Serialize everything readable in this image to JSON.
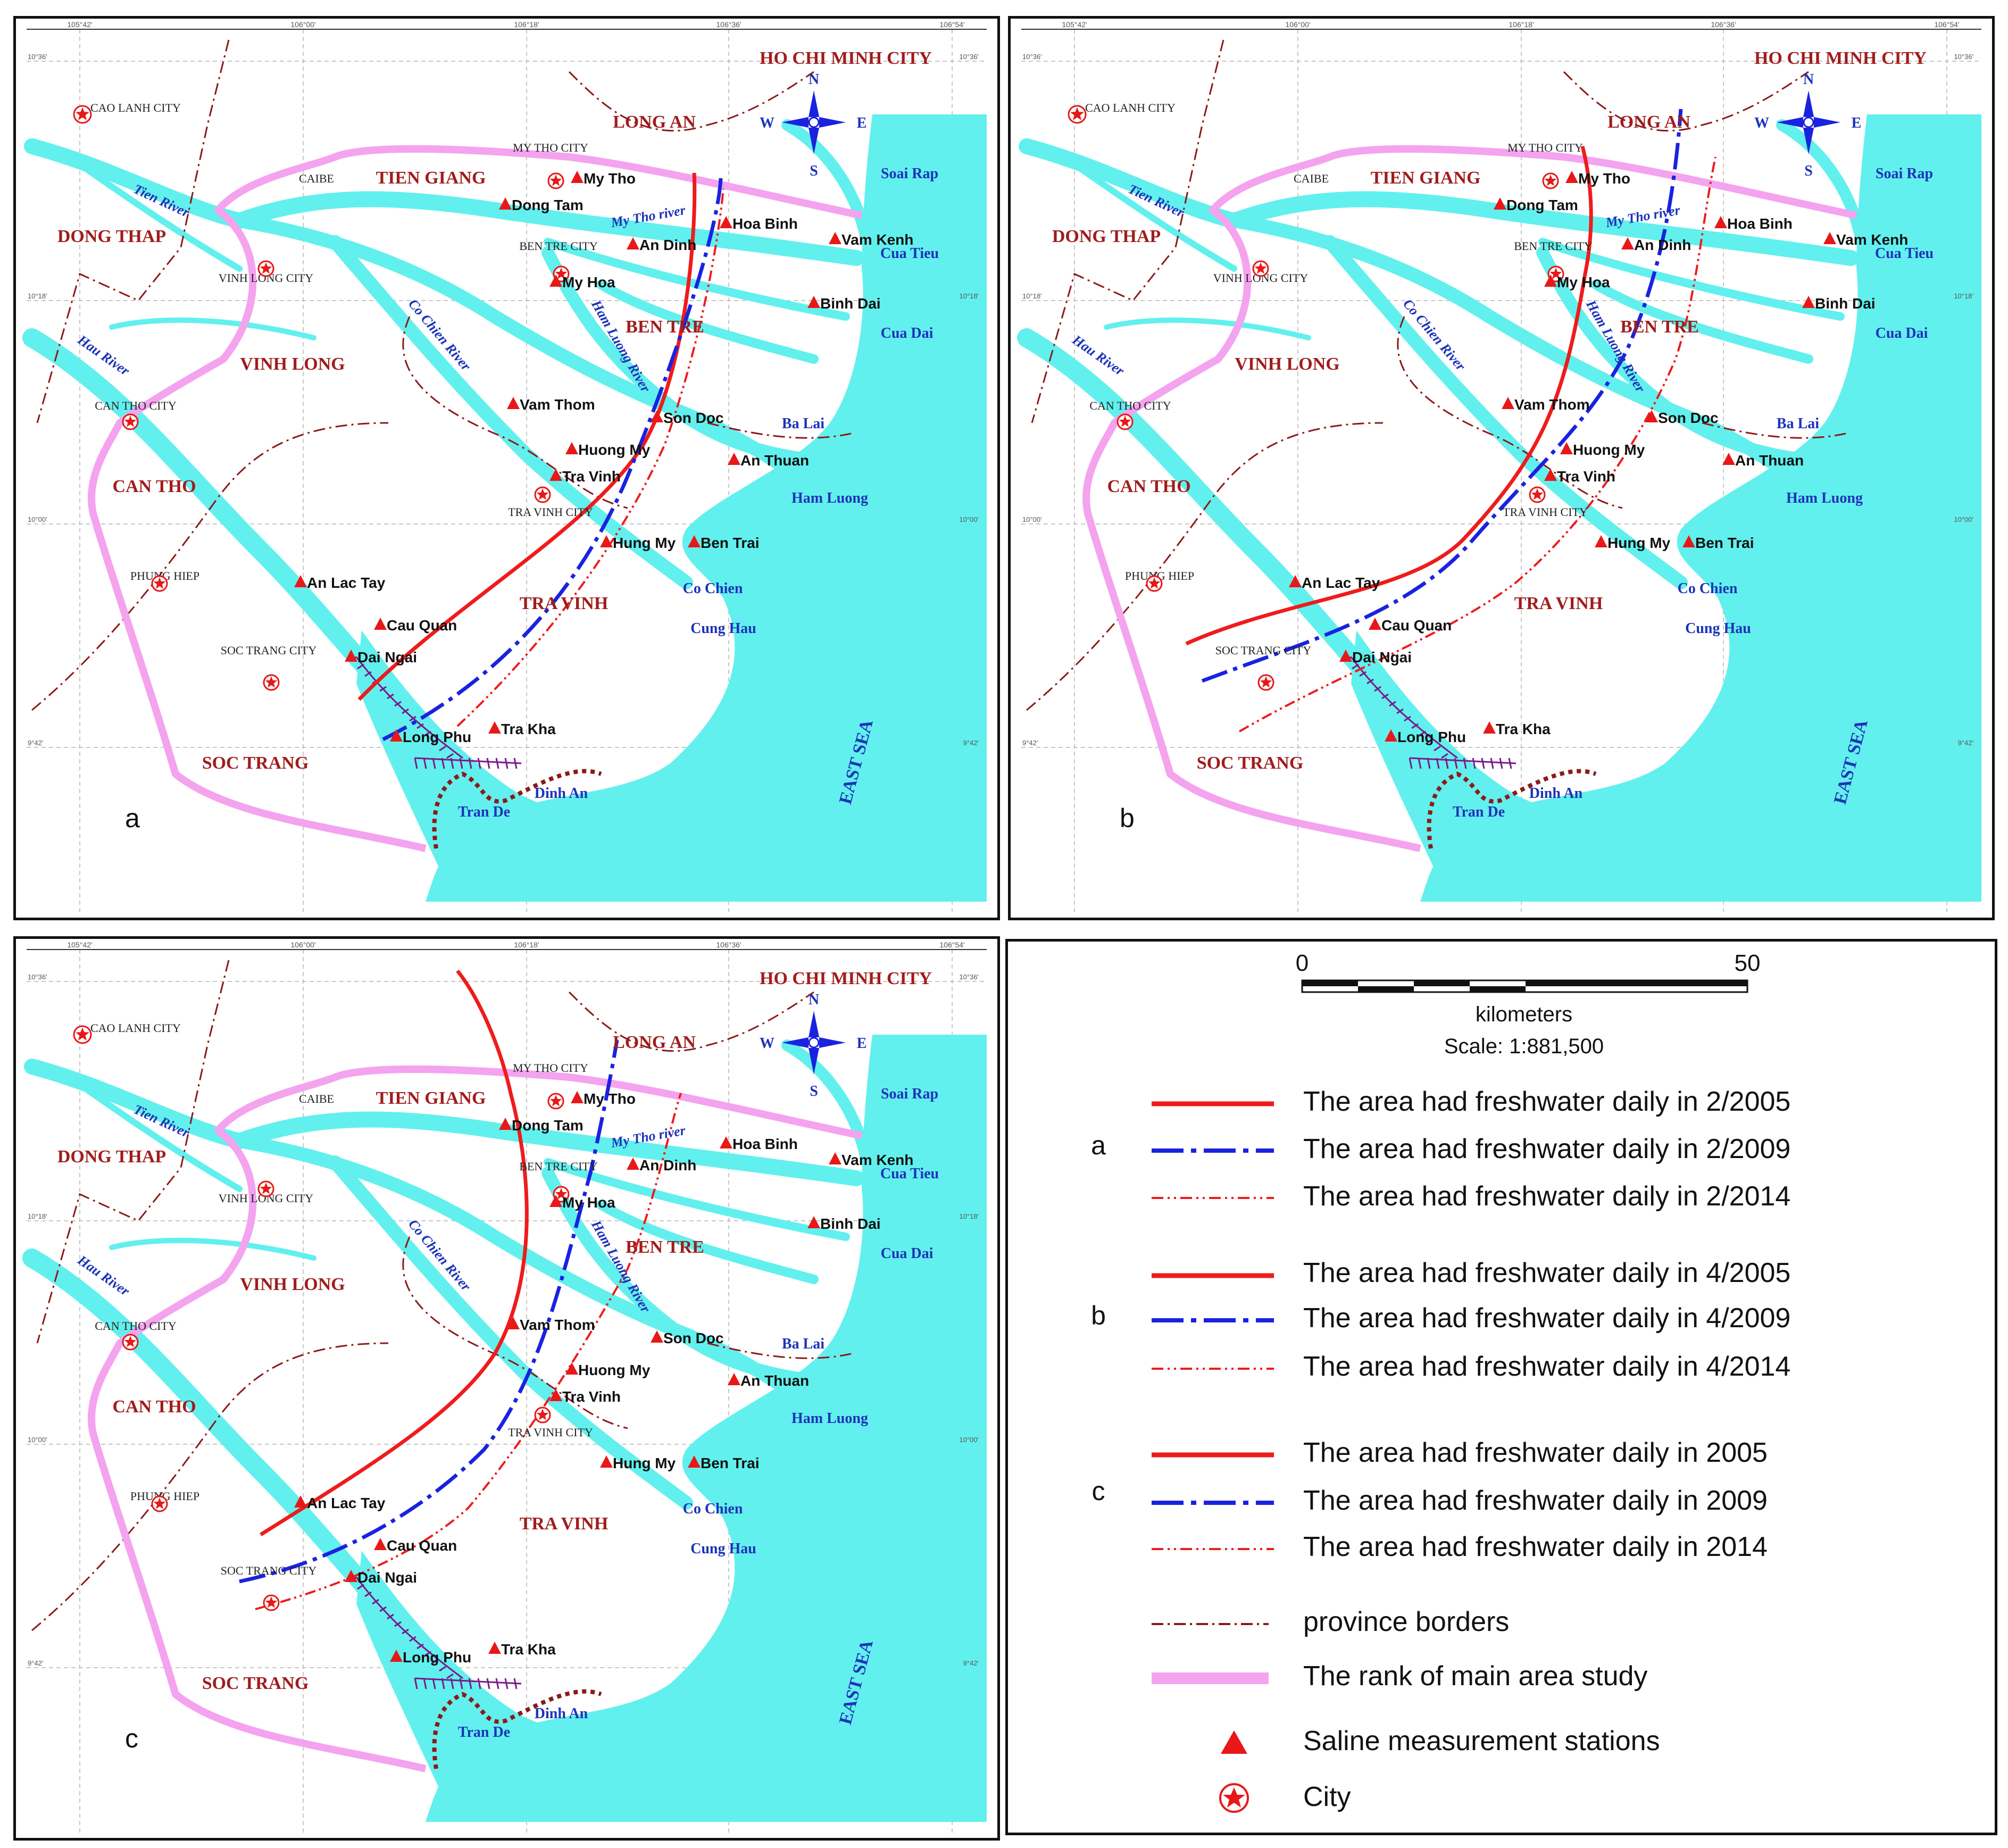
{
  "panels": [
    {
      "id": "a",
      "label": "a"
    },
    {
      "id": "b",
      "label": "b"
    },
    {
      "id": "c",
      "label": "c"
    }
  ],
  "provinces": [
    "HO CHI MINH CITY",
    "LONG AN",
    "TIEN GIANG",
    "DONG THAP",
    "BEN TRE",
    "VINH LONG",
    "CAN THO",
    "TRA VINH",
    "SOC TRANG"
  ],
  "cities": [
    "CAO LANH CITY",
    "MY THO CITY",
    "BEN TRE CITY",
    "VINH LONG CITY",
    "CAN THO CITY",
    "TRA VINH CITY",
    "PHUNG HIEP",
    "SOC TRANG CITY",
    "CAIBE"
  ],
  "stations": [
    "My Tho",
    "Dong Tam",
    "Hoa Binh",
    "Vam Kenh",
    "An Dinh",
    "My Hoa",
    "Binh Dai",
    "Vam Thom",
    "Son Doc",
    "Huong My",
    "An Thuan",
    "Tra Vinh",
    "Hung My",
    "Ben Trai",
    "An Lac Tay",
    "Cau Quan",
    "Dai Ngai",
    "Tra Kha",
    "Long Phu"
  ],
  "water_labels": [
    "Soai Rap",
    "Cua Tieu",
    "Cua Dai",
    "Ba Lai",
    "Ham Luong",
    "Co Chien",
    "Cung Hau",
    "Dinh An",
    "Tran De",
    "EAST SEA"
  ],
  "rivers": [
    "Tien River",
    "My Tho river",
    "Co Chien River",
    "Ham Luong River",
    "Hau River"
  ],
  "compass": {
    "n": "N",
    "s": "S",
    "e": "E",
    "w": "W"
  },
  "ticks": {
    "top": [
      "105°42'",
      "106°00'",
      "106°18'",
      "106°36'",
      "106°54'"
    ],
    "right": [
      "10°36'",
      "10°18'",
      "10°00'",
      "9°42'"
    ],
    "left": [
      "10°36'",
      "10°18'",
      "10°00'",
      "9°42'"
    ]
  },
  "colors": {
    "water": "#62f0ee",
    "study_area": "#f4a3ef",
    "border": "#8c1a1a",
    "freshwater_2005": "#ee1c1c",
    "freshwater_2009": "#1a22e0",
    "freshwater_2014": "#ee1c1c",
    "station": "#e81818"
  },
  "legend": {
    "scale_start": "0",
    "scale_end": "50",
    "scale_unit": "kilometers",
    "scale_ratio": "Scale: 1:881,500",
    "groups": [
      {
        "key": "a",
        "items": [
          "The area had freshwater daily in 2/2005",
          "The area had freshwater daily in 2/2009",
          "The area had freshwater daily in 2/2014"
        ]
      },
      {
        "key": "b",
        "items": [
          "The area had freshwater daily in 4/2005",
          "The area had freshwater daily in 4/2009",
          "The area had freshwater daily in 4/2014"
        ]
      },
      {
        "key": "c",
        "items": [
          "The area had freshwater daily in 2005",
          "The area had freshwater daily in 2009",
          "The area had freshwater daily in 2014"
        ]
      }
    ],
    "symbols": [
      "province borders",
      "The rank of main area study",
      "Saline measurement stations",
      "City"
    ]
  }
}
